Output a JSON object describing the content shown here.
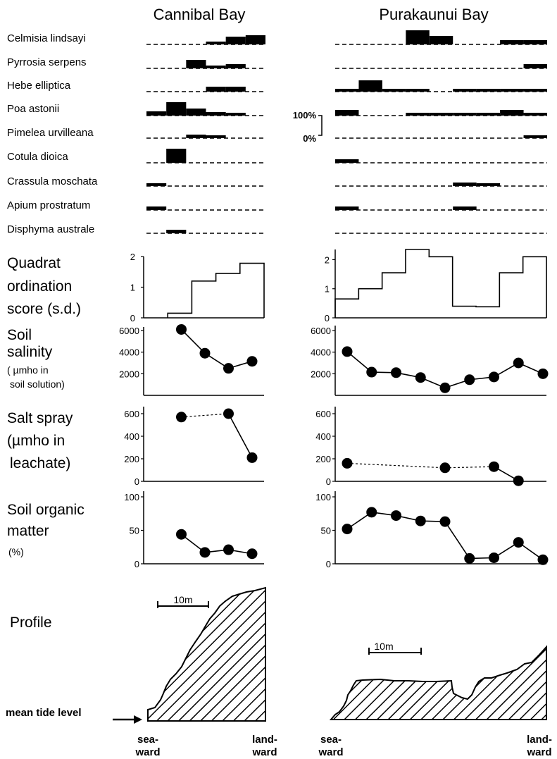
{
  "site_titles": [
    "Cannibal Bay",
    "Purakaunui Bay"
  ],
  "species_labels": [
    "Celmisia lindsayi",
    "Pyrrosia serpens",
    "Hebe elliptica",
    "Poa astonii",
    "Pimelea urvilleana",
    "Cotula dioica",
    "Crassula moschata",
    "Apium prostratum",
    "Disphyma australe"
  ],
  "sample_scale": {
    "top": "100%",
    "bottom": "0%"
  },
  "section_labels": {
    "ordination": [
      "Quadrat",
      "ordination",
      "score (s.d.)"
    ],
    "salinity": [
      "Soil",
      "salinity"
    ],
    "salinity_units": [
      "( µmho  in",
      "soil solution)"
    ],
    "spray": [
      "Salt spray",
      "(µmho in",
      "leachate)"
    ],
    "organic": [
      "Soil organic",
      "matter",
      "(%)"
    ],
    "profile": "Profile"
  },
  "scale_bar_label": "10m",
  "mean_tide_label": "mean tide level",
  "end_labels": {
    "seaward": [
      "sea-",
      "ward"
    ],
    "landward": [
      "land-",
      "ward"
    ]
  },
  "chart_data": [
    {
      "type": "bar",
      "title": "Species cover, Cannibal Bay",
      "site": "Cannibal Bay",
      "quadrats": 6,
      "unit": "% cover (0-100%)",
      "series": [
        {
          "name": "Celmisia lindsayi",
          "values": [
            0,
            0,
            0,
            5,
            55,
            65
          ]
        },
        {
          "name": "Pyrrosia serpens",
          "values": [
            0,
            0,
            60,
            20,
            30,
            0
          ]
        },
        {
          "name": "Hebe elliptica",
          "values": [
            0,
            0,
            0,
            35,
            35,
            0
          ]
        },
        {
          "name": "Poa astonii",
          "values": [
            30,
            95,
            50,
            25,
            15,
            0
          ]
        },
        {
          "name": "Pimelea urvilleana",
          "values": [
            0,
            0,
            25,
            15,
            0,
            0
          ]
        },
        {
          "name": "Cotula dioica",
          "values": [
            0,
            100,
            0,
            0,
            0,
            0
          ]
        },
        {
          "name": "Crassula moschata",
          "values": [
            20,
            0,
            0,
            0,
            0,
            0
          ]
        },
        {
          "name": "Apium prostratum",
          "values": [
            25,
            0,
            0,
            0,
            0,
            0
          ]
        },
        {
          "name": "Disphyma australe",
          "values": [
            0,
            25,
            0,
            0,
            0,
            0
          ]
        }
      ]
    },
    {
      "type": "bar",
      "title": "Species cover, Purakaunui Bay",
      "site": "Purakaunui Bay",
      "quadrats": 9,
      "unit": "% cover (0-100%)",
      "series": [
        {
          "name": "Celmisia lindsayi",
          "values": [
            0,
            0,
            0,
            100,
            60,
            0,
            0,
            30,
            30
          ]
        },
        {
          "name": "Pyrrosia serpens",
          "values": [
            0,
            0,
            0,
            0,
            0,
            0,
            0,
            0,
            30
          ]
        },
        {
          "name": "Hebe elliptica",
          "values": [
            15,
            80,
            15,
            10,
            0,
            20,
            20,
            15,
            15
          ]
        },
        {
          "name": "Poa astonii",
          "values": [
            40,
            0,
            0,
            20,
            10,
            5,
            5,
            40,
            20
          ]
        },
        {
          "name": "Pimelea urvilleana",
          "values": [
            0,
            0,
            0,
            0,
            0,
            0,
            0,
            0,
            20
          ]
        },
        {
          "name": "Cotula dioica",
          "values": [
            25,
            0,
            0,
            0,
            0,
            0,
            0,
            0,
            0
          ]
        },
        {
          "name": "Crassula moschata",
          "values": [
            0,
            0,
            0,
            0,
            0,
            25,
            15,
            0,
            0
          ]
        },
        {
          "name": "Apium prostratum",
          "values": [
            25,
            0,
            0,
            0,
            0,
            25,
            0,
            0,
            0
          ]
        },
        {
          "name": "Disphyma australe",
          "values": [
            0,
            0,
            0,
            0,
            0,
            0,
            0,
            0,
            0
          ]
        }
      ]
    },
    {
      "type": "area",
      "title": "Quadrat ordination score (s.d.), Cannibal Bay",
      "site": "Cannibal Bay",
      "ylabel": "Quadrat ordination score (s.d.)",
      "ylim": [
        0,
        2
      ],
      "yticks": [
        0,
        1,
        2
      ],
      "values": [
        null,
        0.15,
        1.2,
        1.45,
        1.78
      ]
    },
    {
      "type": "area",
      "title": "Quadrat ordination score (s.d.), Purakaunui Bay",
      "site": "Purakaunui Bay",
      "ylabel": "Quadrat ordination score (s.d.)",
      "ylim": [
        0,
        2.3
      ],
      "yticks": [
        0,
        1,
        2
      ],
      "values": [
        0.65,
        1.0,
        1.55,
        2.35,
        2.1,
        0.4,
        0.38,
        1.55,
        2.1
      ]
    },
    {
      "type": "line",
      "title": "Soil salinity, Cannibal Bay",
      "site": "Cannibal Bay",
      "ylabel": "Soil salinity (µmho in soil solution)",
      "ylim": [
        0,
        6000
      ],
      "ytick_labels": [
        "6000",
        "4000",
        "2000"
      ],
      "points": [
        {
          "q": 1,
          "y": 6100
        },
        {
          "q": 2,
          "y": 3900
        },
        {
          "q": 3,
          "y": 2500
        },
        {
          "q": 4,
          "y": 3150
        }
      ],
      "dashed": [
        false,
        false,
        false
      ]
    },
    {
      "type": "line",
      "title": "Soil salinity, Purakaunui Bay",
      "site": "Purakaunui Bay",
      "ylabel": "Soil salinity (µmho in soil solution)",
      "ylim": [
        0,
        6000
      ],
      "ytick_labels": [
        "6000",
        "4000",
        "2000"
      ],
      "points": [
        {
          "q": 0,
          "y": 4050
        },
        {
          "q": 1,
          "y": 2150
        },
        {
          "q": 2,
          "y": 2100
        },
        {
          "q": 3,
          "y": 1650
        },
        {
          "q": 4,
          "y": 700
        },
        {
          "q": 5,
          "y": 1450
        },
        {
          "q": 6,
          "y": 1700
        },
        {
          "q": 7,
          "y": 3000
        },
        {
          "q": 8,
          "y": 2000
        }
      ],
      "dashed": [
        false,
        false,
        false,
        false,
        false,
        false,
        false,
        false
      ]
    },
    {
      "type": "line",
      "title": "Salt spray, Cannibal Bay",
      "site": "Cannibal Bay",
      "ylabel": "Salt spray (µmho in leachate)",
      "ylim": [
        0,
        600
      ],
      "ytick_labels": [
        "600",
        "400",
        "200",
        "0"
      ],
      "points": [
        {
          "q": 1,
          "y": 570
        },
        {
          "q": 3,
          "y": 600
        },
        {
          "q": 4,
          "y": 210
        }
      ],
      "dashed": [
        true,
        false
      ]
    },
    {
      "type": "line",
      "title": "Salt spray, Purakaunui Bay",
      "site": "Purakaunui Bay",
      "ylabel": "Salt spray (µmho in leachate)",
      "ylim": [
        0,
        600
      ],
      "ytick_labels": [
        "600",
        "400",
        "200",
        "0"
      ],
      "points": [
        {
          "q": 0,
          "y": 160
        },
        {
          "q": 4,
          "y": 120
        },
        {
          "q": 6,
          "y": 130
        },
        {
          "q": 7,
          "y": 5
        }
      ],
      "dashed": [
        true,
        true,
        false
      ]
    },
    {
      "type": "line",
      "title": "Soil organic matter, Cannibal Bay",
      "site": "Cannibal Bay",
      "ylabel": "Soil organic matter (%)",
      "ylim": [
        0,
        100
      ],
      "ytick_labels": [
        "100",
        "50",
        "0"
      ],
      "points": [
        {
          "q": 1,
          "y": 44
        },
        {
          "q": 2,
          "y": 17
        },
        {
          "q": 3,
          "y": 21
        },
        {
          "q": 4,
          "y": 15
        }
      ],
      "dashed": [
        false,
        false,
        false
      ]
    },
    {
      "type": "line",
      "title": "Soil organic matter, Purakaunui Bay",
      "site": "Purakaunui Bay",
      "ylabel": "Soil organic matter (%)",
      "ylim": [
        0,
        100
      ],
      "ytick_labels": [
        "100",
        "50",
        "0"
      ],
      "points": [
        {
          "q": 0,
          "y": 52
        },
        {
          "q": 1,
          "y": 77
        },
        {
          "q": 2,
          "y": 72
        },
        {
          "q": 3,
          "y": 64
        },
        {
          "q": 4,
          "y": 63
        },
        {
          "q": 5,
          "y": 8
        },
        {
          "q": 6,
          "y": 9
        },
        {
          "q": 7,
          "y": 32
        },
        {
          "q": 8,
          "y": 6
        }
      ],
      "dashed": [
        false,
        false,
        false,
        false,
        false,
        false,
        false,
        false
      ]
    }
  ]
}
